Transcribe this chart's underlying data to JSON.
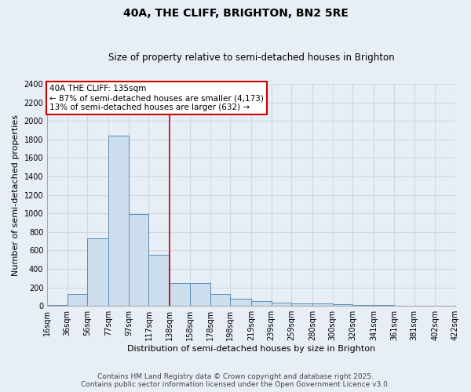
{
  "title": "40A, THE CLIFF, BRIGHTON, BN2 5RE",
  "subtitle": "Size of property relative to semi-detached houses in Brighton",
  "xlabel": "Distribution of semi-detached houses by size in Brighton",
  "ylabel": "Number of semi-detached properties",
  "bin_edges": [
    16,
    36,
    56,
    77,
    97,
    117,
    138,
    158,
    178,
    198,
    219,
    239,
    259,
    280,
    300,
    320,
    341,
    361,
    381,
    402,
    422
  ],
  "bar_heights": [
    10,
    130,
    730,
    1840,
    990,
    550,
    245,
    245,
    130,
    75,
    50,
    35,
    30,
    25,
    15,
    10,
    10,
    5,
    5,
    5
  ],
  "bar_color": "#ccdded",
  "bar_edge_color": "#5b8db8",
  "background_color": "#e8eef5",
  "grid_color": "#d0d8e4",
  "vline_x": 138,
  "vline_color": "#cc0000",
  "annotation_title": "40A THE CLIFF: 135sqm",
  "annotation_line1": "← 87% of semi-detached houses are smaller (4,173)",
  "annotation_line2": "13% of semi-detached houses are larger (632) →",
  "annotation_box_color": "#ffffff",
  "annotation_box_edge_color": "#cc0000",
  "ylim": [
    0,
    2400
  ],
  "yticks": [
    0,
    200,
    400,
    600,
    800,
    1000,
    1200,
    1400,
    1600,
    1800,
    2000,
    2200,
    2400
  ],
  "footnote1": "Contains HM Land Registry data © Crown copyright and database right 2025.",
  "footnote2": "Contains public sector information licensed under the Open Government Licence v3.0.",
  "title_fontsize": 10,
  "subtitle_fontsize": 8.5,
  "tick_label_fontsize": 7,
  "ylabel_fontsize": 8,
  "xlabel_fontsize": 8,
  "annotation_fontsize": 7.5,
  "footnote_fontsize": 6.5
}
